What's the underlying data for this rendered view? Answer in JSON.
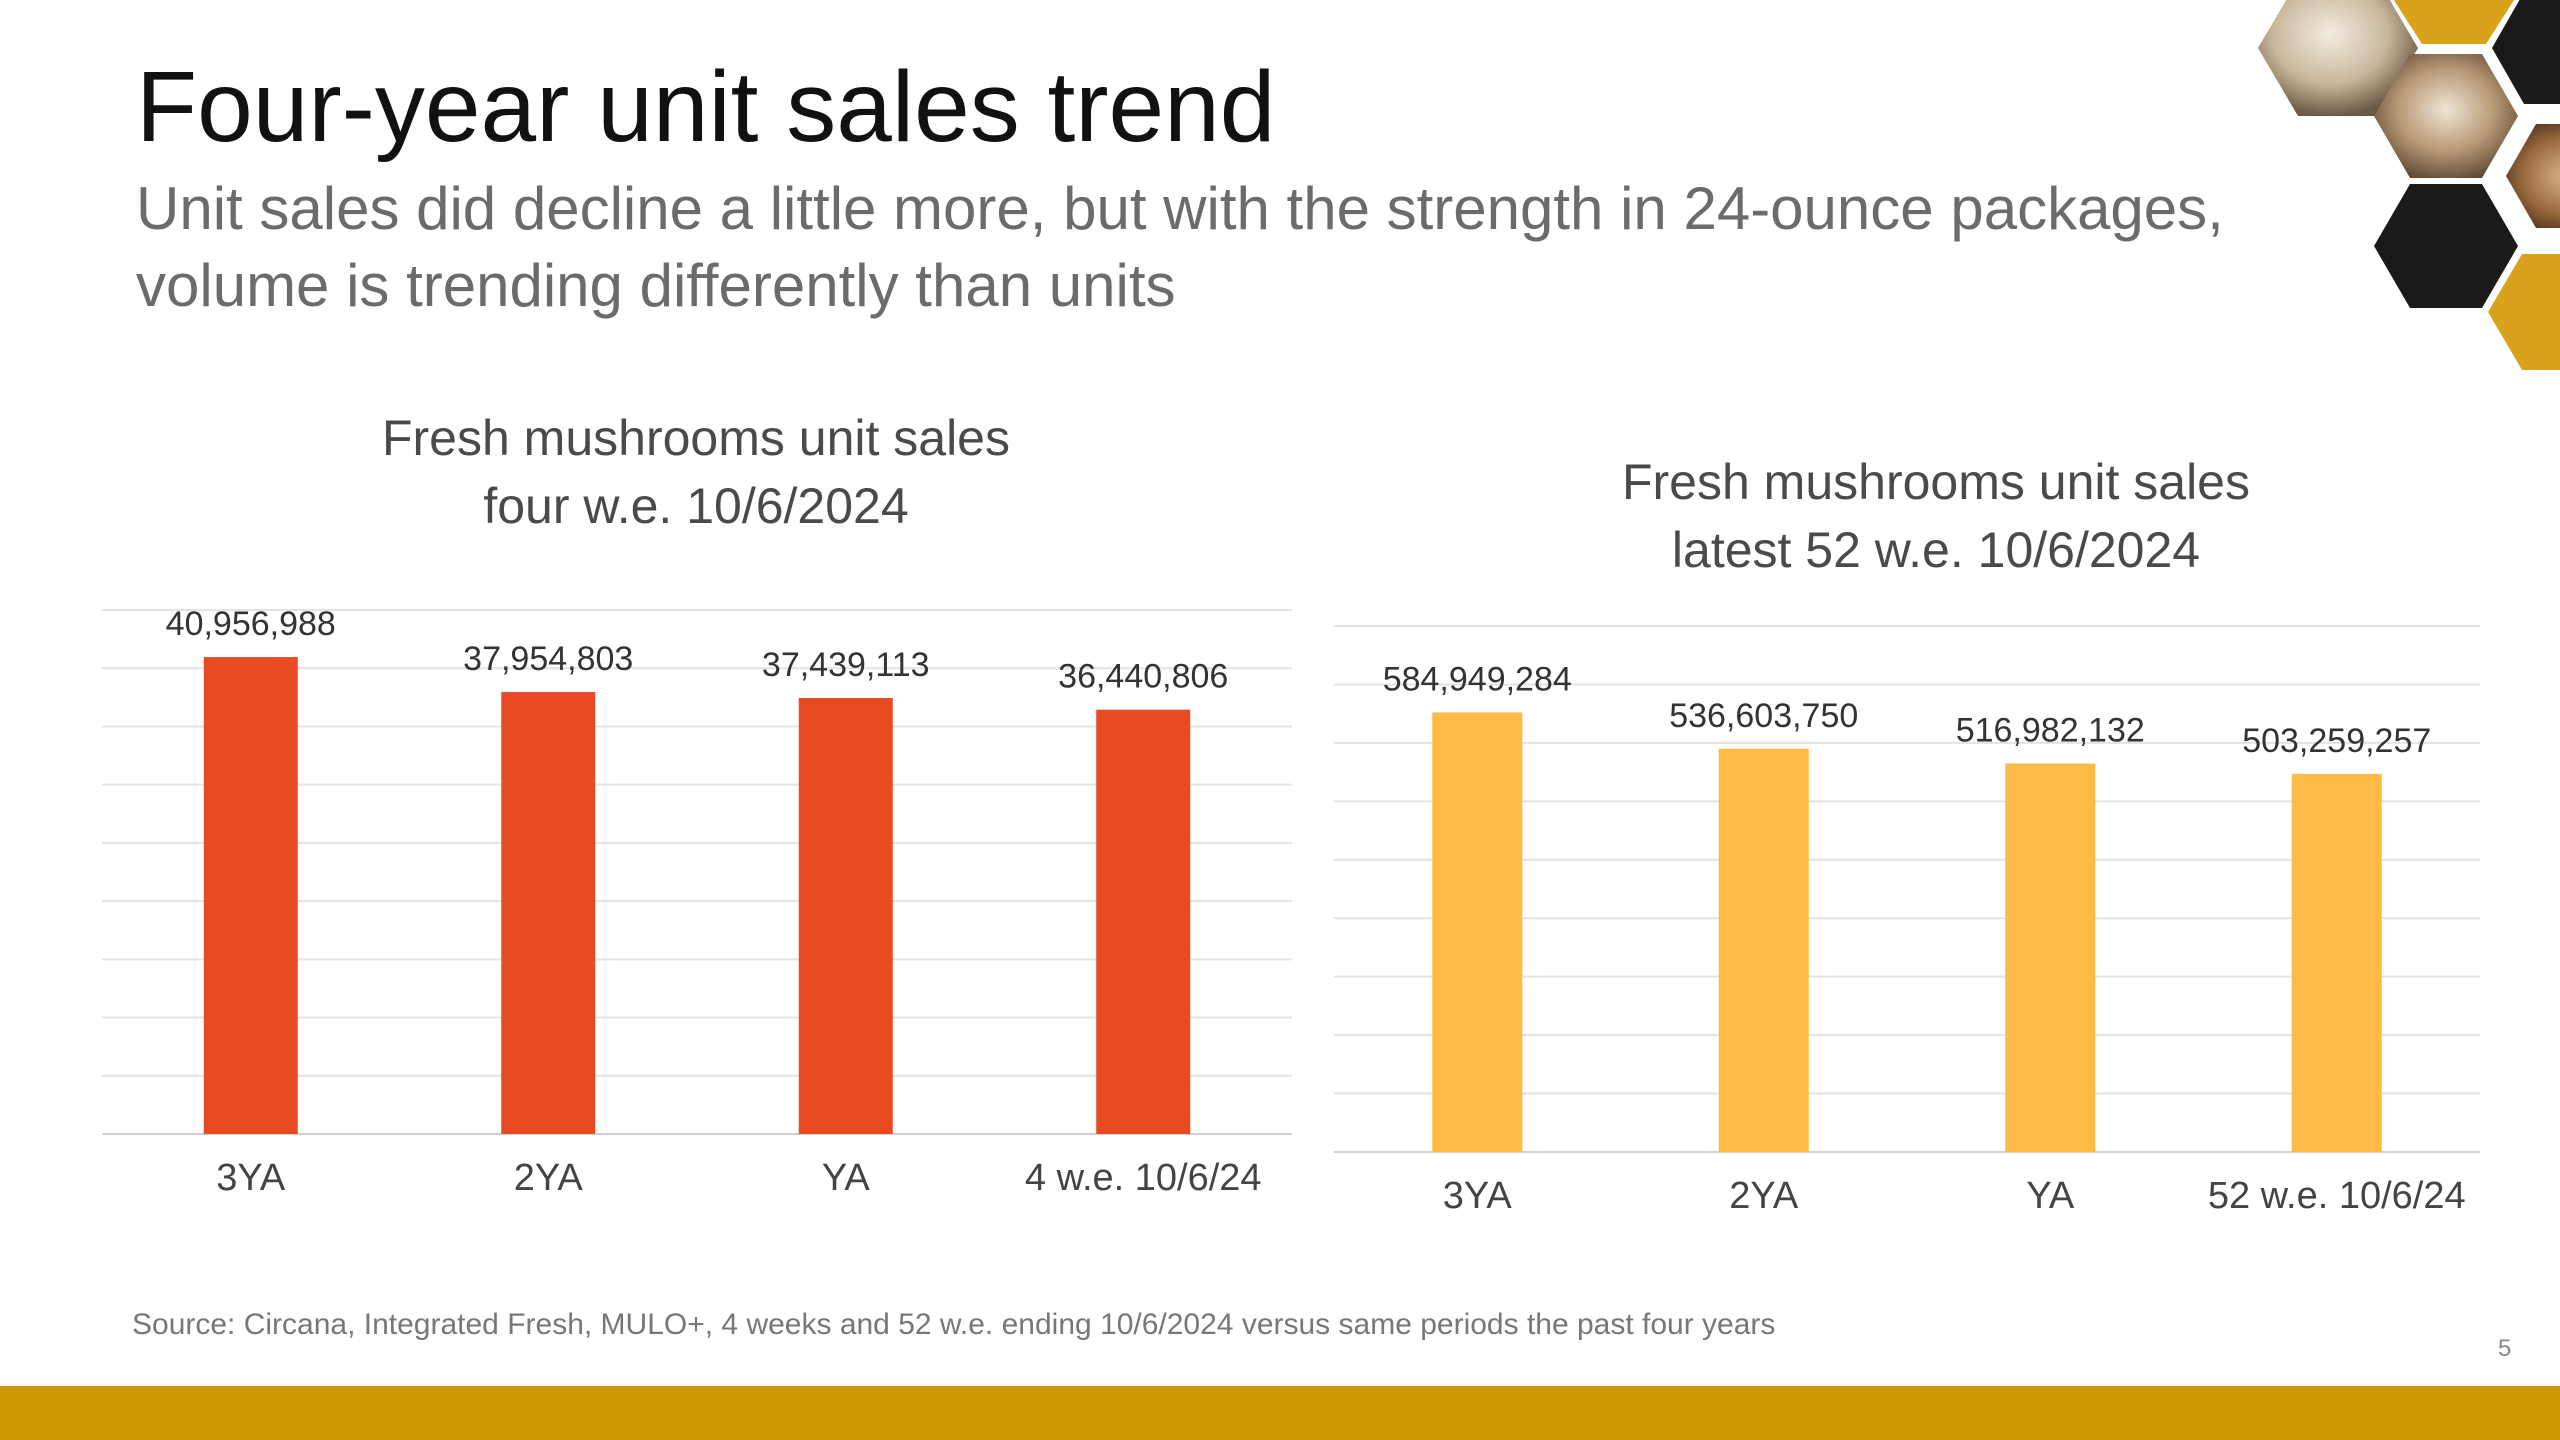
{
  "slide": {
    "title": "Four-year unit sales trend",
    "subtitle": "Unit sales did decline a little more, but with the strength in 24-ounce packages, volume is trending differently than units",
    "source": "Source: Circana, Integrated Fresh, MULO+, 4 weeks and 52 w.e. ending 10/6/2024 versus same periods the past four years",
    "page_number": "5",
    "accent_color": "#CC9900",
    "decoration": "mushroom-photo-hexagon-collage"
  },
  "chart_data": [
    {
      "type": "bar",
      "title_lines": [
        "Fresh mushrooms unit sales",
        "four w.e. 10/6/2024"
      ],
      "categories": [
        "3YA",
        "2YA",
        "YA",
        "4 w.e. 10/6/24"
      ],
      "values": [
        40956988,
        37954803,
        37439113,
        36440806
      ],
      "value_labels": [
        "40,956,988",
        "37,954,803",
        "37,439,113",
        "36,440,806"
      ],
      "ylim": [
        0,
        45000000
      ],
      "grid": true,
      "bar_color": "#E84B22"
    },
    {
      "type": "bar",
      "title_lines": [
        "Fresh mushrooms unit sales",
        "latest 52 w.e. 10/6/2024"
      ],
      "categories": [
        "3YA",
        "2YA",
        "YA",
        "52 w.e. 10/6/24"
      ],
      "values": [
        584949284,
        536603750,
        516982132,
        503259257
      ],
      "value_labels": [
        "584,949,284",
        "536,603,750",
        "516,982,132",
        "503,259,257"
      ],
      "ylim": [
        0,
        700000000
      ],
      "grid": true,
      "bar_color": "#FDBA45"
    }
  ]
}
